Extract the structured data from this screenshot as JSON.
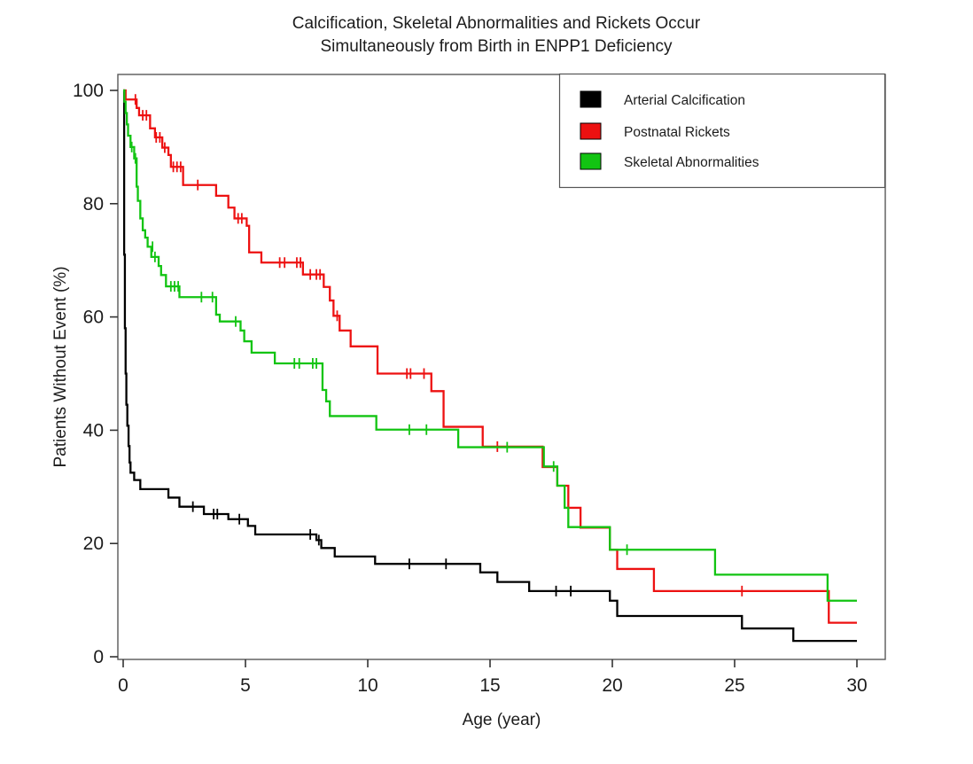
{
  "page": {
    "background": "#ffffff"
  },
  "chart_data": {
    "type": "line",
    "subtype": "kaplan-meier-step",
    "title_lines": [
      "Calcification, Skeletal Abnormalities and Rickets Occur",
      "Simultaneously from Birth in ENPP1 Deficiency"
    ],
    "xlabel": "Age (year)",
    "ylabel": "Patients Without Event (%)",
    "xlim": [
      0,
      30
    ],
    "ylim": [
      0,
      100
    ],
    "xticks": [
      0,
      5,
      10,
      15,
      20,
      25,
      30
    ],
    "yticks": [
      0,
      20,
      40,
      60,
      80,
      100
    ],
    "grid": false,
    "legend_position": "top-right",
    "frame_color": "#595959",
    "tick_color": "#333333",
    "series": [
      {
        "name": "Arterial Calcification",
        "color": "#000000",
        "points": [
          [
            0,
            100
          ],
          [
            0.04,
            71
          ],
          [
            0.07,
            58
          ],
          [
            0.1,
            50
          ],
          [
            0.13,
            44.5
          ],
          [
            0.17,
            40.8
          ],
          [
            0.22,
            37.2
          ],
          [
            0.26,
            34.3
          ],
          [
            0.3,
            32.5
          ],
          [
            0.45,
            31.2
          ],
          [
            0.7,
            29.6
          ],
          [
            1.85,
            28.1
          ],
          [
            2.3,
            26.5
          ],
          [
            3.3,
            25.2
          ],
          [
            4.3,
            24.3
          ],
          [
            5.1,
            23.1
          ],
          [
            5.4,
            21.6
          ],
          [
            7.9,
            20.6
          ],
          [
            8.1,
            19.2
          ],
          [
            8.65,
            17.7
          ],
          [
            10.3,
            16.4
          ],
          [
            14.6,
            14.9
          ],
          [
            15.3,
            13.2
          ],
          [
            16.6,
            11.6
          ],
          [
            19.9,
            9.9
          ],
          [
            20.2,
            7.2
          ],
          [
            25.3,
            5
          ],
          [
            27.4,
            2.8
          ],
          [
            30,
            2.8
          ]
        ],
        "censors": [
          [
            2.85,
            26.5
          ],
          [
            3.7,
            25.2
          ],
          [
            3.85,
            25.2
          ],
          [
            4.75,
            24.3
          ],
          [
            7.65,
            21.6
          ],
          [
            8.0,
            20.6
          ],
          [
            11.7,
            16.4
          ],
          [
            13.2,
            16.4
          ],
          [
            17.7,
            11.6
          ],
          [
            18.3,
            11.6
          ]
        ]
      },
      {
        "name": "Postnatal Rickets",
        "color": "#ed1111",
        "points": [
          [
            0,
            100
          ],
          [
            0.1,
            98.4
          ],
          [
            0.55,
            96.9
          ],
          [
            0.65,
            95.6
          ],
          [
            1.1,
            93.3
          ],
          [
            1.3,
            91.7
          ],
          [
            1.6,
            89.9
          ],
          [
            1.85,
            88.6
          ],
          [
            1.95,
            86.5
          ],
          [
            2.45,
            83.3
          ],
          [
            3.8,
            81.4
          ],
          [
            4.3,
            79.3
          ],
          [
            4.55,
            77.4
          ],
          [
            5.05,
            76.1
          ],
          [
            5.15,
            71.4
          ],
          [
            5.65,
            69.6
          ],
          [
            7.35,
            67.5
          ],
          [
            8.2,
            65.3
          ],
          [
            8.45,
            62.9
          ],
          [
            8.6,
            60.2
          ],
          [
            8.85,
            57.6
          ],
          [
            9.3,
            54.8
          ],
          [
            10.4,
            50
          ],
          [
            12.6,
            46.9
          ],
          [
            13.1,
            40.6
          ],
          [
            14.7,
            37.1
          ],
          [
            17.15,
            33.5
          ],
          [
            17.75,
            30.2
          ],
          [
            18.2,
            26.3
          ],
          [
            18.7,
            22.8
          ],
          [
            19.9,
            18.9
          ],
          [
            20.2,
            15.5
          ],
          [
            21.7,
            11.6
          ],
          [
            28.85,
            6
          ],
          [
            30,
            6
          ]
        ],
        "censors": [
          [
            0.5,
            98.4
          ],
          [
            0.8,
            95.6
          ],
          [
            0.95,
            95.6
          ],
          [
            1.35,
            91.7
          ],
          [
            1.5,
            91.7
          ],
          [
            1.7,
            89.9
          ],
          [
            2.05,
            86.5
          ],
          [
            2.2,
            86.5
          ],
          [
            2.35,
            86.5
          ],
          [
            3.05,
            83.3
          ],
          [
            4.7,
            77.4
          ],
          [
            4.85,
            77.4
          ],
          [
            6.4,
            69.6
          ],
          [
            6.6,
            69.6
          ],
          [
            7.1,
            69.6
          ],
          [
            7.25,
            69.6
          ],
          [
            7.65,
            67.5
          ],
          [
            7.9,
            67.5
          ],
          [
            8.05,
            67.5
          ],
          [
            8.75,
            60.2
          ],
          [
            11.6,
            50
          ],
          [
            11.75,
            50
          ],
          [
            12.3,
            50
          ],
          [
            15.3,
            37.1
          ],
          [
            25.3,
            11.6
          ]
        ]
      },
      {
        "name": "Skeletal Abnormalities",
        "color": "#12c412",
        "points": [
          [
            0,
            100
          ],
          [
            0.05,
            98
          ],
          [
            0.1,
            96
          ],
          [
            0.15,
            94
          ],
          [
            0.2,
            92
          ],
          [
            0.3,
            90
          ],
          [
            0.45,
            88
          ],
          [
            0.55,
            83
          ],
          [
            0.6,
            80.5
          ],
          [
            0.7,
            77.4
          ],
          [
            0.8,
            75.3
          ],
          [
            0.9,
            74
          ],
          [
            1,
            72.4
          ],
          [
            1.15,
            70.6
          ],
          [
            1.45,
            69
          ],
          [
            1.55,
            67.4
          ],
          [
            1.75,
            65.4
          ],
          [
            2.3,
            63.5
          ],
          [
            3.8,
            60.4
          ],
          [
            3.95,
            59.2
          ],
          [
            4.8,
            57.6
          ],
          [
            4.95,
            55.7
          ],
          [
            5.25,
            53.7
          ],
          [
            6.2,
            51.8
          ],
          [
            8.15,
            47.1
          ],
          [
            8.3,
            45.1
          ],
          [
            8.45,
            42.5
          ],
          [
            10.35,
            40.1
          ],
          [
            13.7,
            37
          ],
          [
            17.2,
            33.6
          ],
          [
            17.75,
            30.2
          ],
          [
            18.05,
            26.3
          ],
          [
            18.2,
            22.9
          ],
          [
            19.9,
            18.9
          ],
          [
            24.2,
            14.5
          ],
          [
            28.8,
            9.9
          ],
          [
            30,
            9.9
          ]
        ],
        "censors": [
          [
            0.35,
            90
          ],
          [
            0.5,
            88
          ],
          [
            1.2,
            72.4
          ],
          [
            1.3,
            70.6
          ],
          [
            1.95,
            65.4
          ],
          [
            2.1,
            65.4
          ],
          [
            2.25,
            65.4
          ],
          [
            3.2,
            63.5
          ],
          [
            3.65,
            63.5
          ],
          [
            4.6,
            59.2
          ],
          [
            7,
            51.8
          ],
          [
            7.2,
            51.8
          ],
          [
            7.75,
            51.8
          ],
          [
            7.9,
            51.8
          ],
          [
            11.7,
            40.1
          ],
          [
            12.4,
            40.1
          ],
          [
            15.7,
            37
          ],
          [
            17.6,
            33.6
          ],
          [
            20.6,
            18.9
          ]
        ]
      }
    ]
  }
}
